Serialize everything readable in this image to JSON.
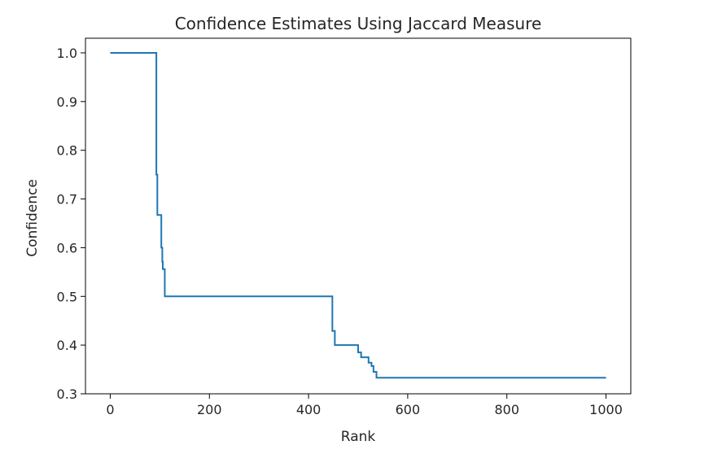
{
  "chart_data": {
    "type": "line",
    "title": "Confidence Estimates Using Jaccard Measure",
    "xlabel": "Rank",
    "ylabel": "Confidence",
    "xlim": [
      -50,
      1050
    ],
    "ylim": [
      0.3,
      1.03
    ],
    "x_ticks": [
      0,
      200,
      400,
      600,
      800,
      1000
    ],
    "x_tick_labels": [
      "0",
      "200",
      "400",
      "600",
      "800",
      "1000"
    ],
    "y_ticks": [
      0.3,
      0.4,
      0.5,
      0.6,
      0.7,
      0.8,
      0.9,
      1.0
    ],
    "y_tick_labels": [
      "0.3",
      "0.4",
      "0.5",
      "0.6",
      "0.7",
      "0.8",
      "0.9",
      "1.0"
    ],
    "grid": false,
    "line_color": "#1f77b4",
    "series": [
      {
        "x": [
          0,
          93,
          93,
          95,
          95,
          97,
          97,
          103,
          103,
          105,
          105,
          106,
          106,
          110,
          110,
          448,
          448,
          453,
          453,
          462,
          462,
          500,
          500,
          506,
          506,
          521,
          521,
          527,
          527,
          531,
          531,
          537,
          537,
          1000
        ],
        "y": [
          1.0,
          1.0,
          0.75,
          0.75,
          0.667,
          0.667,
          0.667,
          0.667,
          0.6,
          0.6,
          0.571,
          0.571,
          0.556,
          0.556,
          0.5,
          0.5,
          0.429,
          0.429,
          0.4,
          0.4,
          0.4,
          0.4,
          0.385,
          0.385,
          0.375,
          0.375,
          0.364,
          0.364,
          0.357,
          0.357,
          0.345,
          0.345,
          0.333,
          0.333
        ]
      }
    ]
  }
}
